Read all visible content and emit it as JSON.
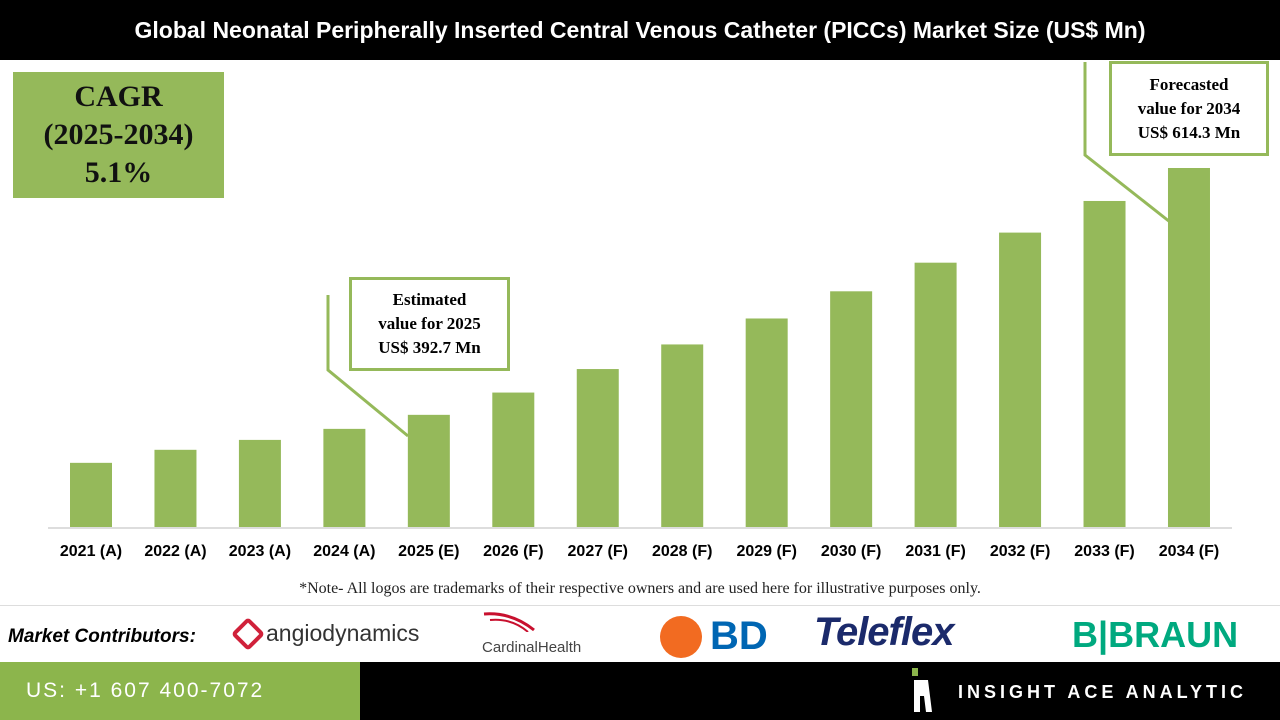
{
  "title": "Global Neonatal Peripherally Inserted Central Venous Catheter (PICCs) Market Size (US$ Mn)",
  "cagr": {
    "line1": "CAGR",
    "line2": "(2025-2034)",
    "line3": "5.1%"
  },
  "callouts": {
    "estimated": {
      "line1": "Estimated",
      "line2": "value for 2025",
      "line3": "US$ 392.7 Mn"
    },
    "forecast": {
      "line1": "Forecasted",
      "line2": "value for 2034",
      "line3": "US$ 614.3 Mn"
    }
  },
  "chart_data": {
    "type": "bar",
    "title": "Global Neonatal Peripherally Inserted Central Venous Catheter (PICCs) Market Size (US$ Mn)",
    "categories": [
      "2021 (A)",
      "2022 (A)",
      "2023 (A)",
      "2024 (A)",
      "2025 (E)",
      "2026 (F)",
      "2027 (F)",
      "2028 (F)",
      "2029 (F)",
      "2030 (F)",
      "2031 (F)",
      "2032 (F)",
      "2033 (F)",
      "2034 (F)"
    ],
    "values": [
      349.6,
      361.3,
      370.2,
      380.1,
      392.7,
      412.7,
      433.8,
      455.9,
      479.2,
      503.6,
      529.3,
      556.3,
      584.7,
      614.3
    ],
    "xlabel": "",
    "ylabel": "",
    "ylim": [
      292,
      614.3
    ],
    "grid": false,
    "color": "#95b95a"
  },
  "note": "*Note- All logos are trademarks of their respective owners and are used here for illustrative purposes only.",
  "contributors": {
    "label": "Market Contributors:",
    "logos": [
      "angiodynamics",
      "CardinalHealth",
      "BD",
      "Teleflex",
      "B|BRAUN"
    ]
  },
  "footer": {
    "phone": "US: +1 607 400-7072",
    "brand": "INSIGHT ACE ANALYTIC"
  }
}
